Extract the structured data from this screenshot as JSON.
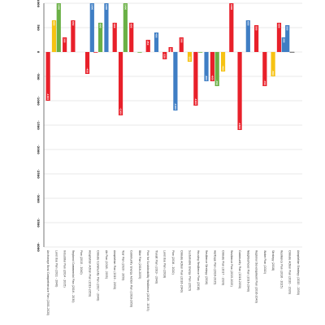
{
  "chart_data": {
    "type": "bar",
    "title": "",
    "xlabel": "",
    "ylabel": "",
    "ylim": [
      -4000,
      1000
    ],
    "yticks": [
      1000,
      500,
      0,
      -500,
      -1000,
      -1500,
      -2000,
      -2500,
      -3000,
      -3500,
      -4000
    ],
    "ytick_labels": [
      "1000",
      "500",
      "0",
      "-500",
      "-1000",
      "-1500",
      "-2000",
      "-2500",
      "-3000",
      "-3500",
      "-4000"
    ],
    "grid": true,
    "legend": "none",
    "categories": [
      "Anchorage Bowl Comprehensive Plan (2001-2020)",
      "Land Use Plan (2011 - 2040)",
      "Industrial Plan (2014 - 2035)",
      "Regional Commercial Plan (2016 - 2030)",
      "Plan (2015 - 2040)",
      "Adaptation Action Plan (2019-2050)",
      "Climate Community Plan (2017 - 2040)",
      "Air Plan (2018 - 2035)",
      "Adaptation Plan (2019 - 2050)",
      "Year Plan (2020 - 2050)",
      "Community Energy Action Plan (2018-2050)",
      "Bike Plan (2016-2035)",
      "Plan for Sustainability Resilience (2019 - 2035)",
      "Transit Plan (2019 - 2040)",
      "Land Use Plan (2018)",
      "Plan (2016 - 2020)",
      "Climate Action Plan (2016-2040)",
      "Sustainable Energy Plan (2015)",
      "Housing Resilience Plan (2018)",
      "Resilience Strategy (2016)",
      "Heritage Plan (2016-2035)",
      "Climate Plan (2017 - 2030)",
      "Resilience Plan (2015-2025)",
      "Community Plan (2018-2050)",
      "Neighborhood Plan (2016-2040)",
      "Regional Development Plan (2016-2040)",
      "Water Plan (2020)",
      "Strategy (2018)",
      "Resilience Plan (2016 - 2025)",
      "Climate Action Plan (2020 - 2030)",
      "Adaptation Strategy (2020 - 2050)"
    ],
    "series": [
      {
        "color": "#e8202a",
        "values": [
          -1000,
          null,
          300,
          650,
          null,
          -450,
          0,
          null,
          600,
          -1300,
          600,
          null,
          250,
          null,
          -150,
          100,
          300,
          null,
          -1100,
          null,
          -600,
          null,
          1000,
          -1600,
          null,
          550,
          -700,
          null,
          600,
          null,
          null
        ]
      },
      {
        "color": "#f6c213",
        "values": [
          null,
          650,
          null,
          null,
          null,
          null,
          null,
          null,
          null,
          null,
          null,
          null,
          null,
          null,
          null,
          null,
          null,
          -200,
          null,
          null,
          null,
          -400,
          null,
          null,
          null,
          null,
          null,
          -500,
          null,
          null,
          null
        ]
      },
      {
        "color": "#3f7ec4",
        "values": [
          null,
          null,
          null,
          null,
          null,
          1000,
          null,
          1000,
          null,
          null,
          null,
          null,
          null,
          400,
          null,
          -1200,
          null,
          null,
          null,
          -600,
          null,
          null,
          null,
          null,
          650,
          null,
          null,
          null,
          300,
          550,
          null
        ]
      },
      {
        "color": "#6ab045",
        "values": [
          null,
          1000,
          null,
          null,
          null,
          null,
          600,
          null,
          null,
          1000,
          null,
          0,
          null,
          null,
          null,
          null,
          null,
          null,
          0,
          null,
          -700,
          null,
          null,
          null,
          null,
          null,
          null,
          null,
          null,
          null,
          null
        ]
      },
      {
        "color": "#b8b8b8",
        "values": [
          null,
          null,
          null,
          null,
          null,
          null,
          null,
          null,
          null,
          null,
          null,
          null,
          null,
          null,
          null,
          null,
          null,
          null,
          null,
          null,
          null,
          null,
          null,
          null,
          null,
          null,
          null,
          null,
          null,
          0,
          null
        ]
      }
    ]
  }
}
